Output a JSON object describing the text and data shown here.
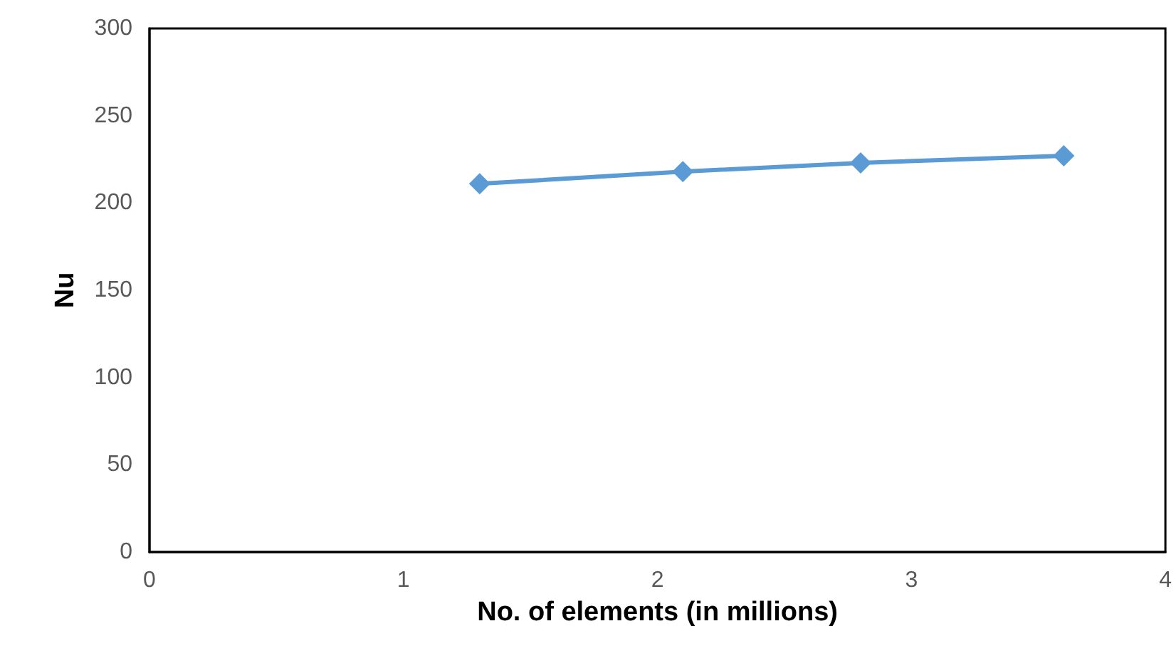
{
  "chart_data": {
    "type": "line",
    "xlabel": "No. of elements (in millions)",
    "ylabel": "Nu",
    "x": [
      1.3,
      2.1,
      2.8,
      3.6
    ],
    "series": [
      {
        "color": "#5b9bd5",
        "values": [
          211,
          218,
          223,
          227
        ]
      }
    ],
    "xlim": [
      0,
      4
    ],
    "xticks": [
      0,
      1,
      2,
      3,
      4
    ],
    "ylim": [
      0,
      300
    ],
    "yticks": [
      0,
      50,
      100,
      150,
      200,
      250,
      300
    ],
    "grid": false,
    "marker": "diamond",
    "line_style": "solid"
  }
}
